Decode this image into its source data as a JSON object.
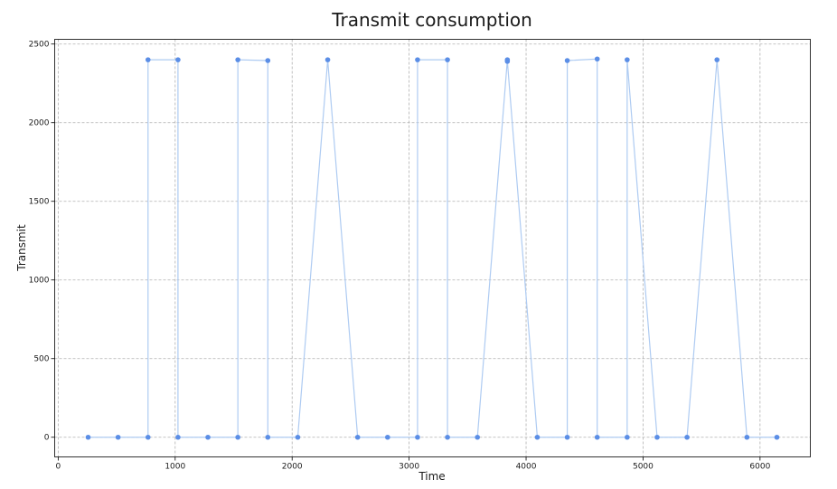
{
  "chart_data": {
    "type": "line",
    "title": "Transmit consumption",
    "xlabel": "Time",
    "ylabel": "Transmit",
    "xlim": [
      -30,
      6430
    ],
    "ylim": [
      -125,
      2530
    ],
    "xticks": [
      0,
      1000,
      2000,
      3000,
      4000,
      5000,
      6000
    ],
    "yticks": [
      0,
      500,
      1000,
      1500,
      2000,
      2500
    ],
    "grid": true,
    "colors": {
      "line": "#aecbf2",
      "marker": "#5b8ee6"
    },
    "series": [
      {
        "name": "Transmit",
        "x": [
          256,
          512,
          768,
          768,
          1024,
          1024,
          1280,
          1536,
          1536,
          1792,
          1792,
          2048,
          2304,
          2560,
          2816,
          3072,
          3072,
          3328,
          3328,
          3584,
          3840,
          3840,
          4096,
          4352,
          4352,
          4608,
          4608,
          4864,
          4864,
          5120,
          5376,
          5632,
          5888,
          6144
        ],
        "y": [
          0,
          0,
          0,
          2400,
          2400,
          0,
          0,
          0,
          2400,
          2395,
          0,
          0,
          2400,
          0,
          0,
          0,
          2400,
          2400,
          0,
          0,
          2400,
          2390,
          0,
          0,
          2395,
          2405,
          0,
          0,
          2400,
          0,
          0,
          2400,
          0,
          0
        ]
      }
    ]
  }
}
